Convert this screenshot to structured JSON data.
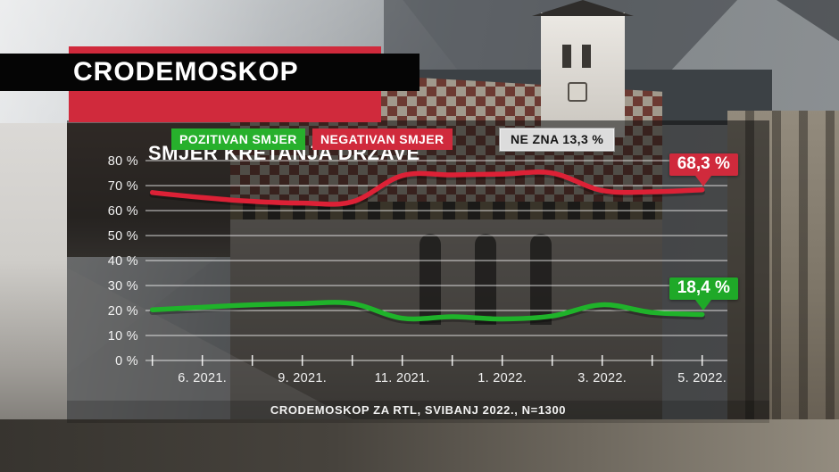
{
  "header": {
    "title": "CRODEMOSKOP",
    "subtitle": "SMJER KRETANJA DRŽAVE"
  },
  "legend": {
    "positive": {
      "label": "POZITIVAN SMJER",
      "color": "#27b02c"
    },
    "negative": {
      "label": "NEGATIVAN SMJER",
      "color": "#d02a3c"
    },
    "unknown": {
      "label": "NE ZNA 13,3 %",
      "value": 13.3,
      "color": "#dcdcdc"
    }
  },
  "chart_data": {
    "type": "line",
    "title": "SMJER KRETANJA DRŽAVE",
    "ylabel": "%",
    "ylim": [
      0,
      80
    ],
    "grid": true,
    "legend_position": "top",
    "y_tick_labels": [
      "0 %",
      "10 %",
      "20 %",
      "30 %",
      "40 %",
      "50 %",
      "60 %",
      "70 %",
      "80 %"
    ],
    "x_tick_count": 12,
    "x_tick_labels": [
      {
        "index": 1,
        "label": "6. 2021."
      },
      {
        "index": 3,
        "label": "9. 2021."
      },
      {
        "index": 5,
        "label": "11. 2021."
      },
      {
        "index": 7,
        "label": "1. 2022."
      },
      {
        "index": 9,
        "label": "3. 2022."
      },
      {
        "index": 11,
        "label": "5. 2022."
      }
    ],
    "series": [
      {
        "name": "NEGATIVAN SMJER",
        "color": "#dc2136",
        "end_label": "68,3 %",
        "end_value": 68.3,
        "values": [
          67.2,
          65.2,
          63.7,
          63.0,
          63.5,
          74.0,
          74.3,
          74.6,
          75.0,
          68.0,
          67.5,
          68.3
        ]
      },
      {
        "name": "POZITIVAN SMJER",
        "color": "#1fb32a",
        "end_label": "18,4 %",
        "end_value": 18.4,
        "values": [
          20.3,
          21.3,
          22.3,
          22.8,
          22.8,
          16.9,
          17.5,
          16.6,
          17.8,
          22.3,
          19.2,
          18.4
        ]
      }
    ]
  },
  "footer": {
    "source": "CRODEMOSKOP ZA RTL, SVIBANJ 2022., N=1300"
  }
}
